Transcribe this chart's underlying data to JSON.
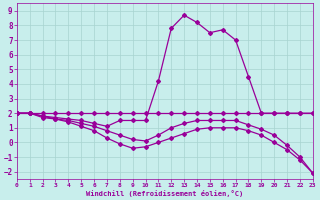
{
  "bg_color": "#c8eeec",
  "grid_color": "#a8d4d0",
  "line_color": "#990099",
  "xlim": [
    0,
    23
  ],
  "ylim": [
    -2.5,
    9.5
  ],
  "yticks": [
    -2,
    -1,
    0,
    1,
    2,
    3,
    4,
    5,
    6,
    7,
    8,
    9
  ],
  "xticks": [
    0,
    1,
    2,
    3,
    4,
    5,
    6,
    7,
    8,
    9,
    10,
    11,
    12,
    13,
    14,
    15,
    16,
    17,
    18,
    19,
    20,
    21,
    22,
    23
  ],
  "xlabel": "Windchill (Refroidissement éolien,°C)",
  "line_flat_y": [
    2.0,
    2.0,
    2.0,
    2.0,
    2.0,
    2.0,
    2.0,
    2.0,
    2.0,
    2.0,
    2.0,
    2.0,
    2.0,
    2.0,
    2.0,
    2.0,
    2.0,
    2.0,
    2.0,
    2.0,
    2.0,
    2.0,
    2.0,
    2.0
  ],
  "line_peak_y": [
    2.0,
    2.0,
    1.8,
    1.7,
    1.6,
    1.5,
    1.3,
    1.1,
    1.5,
    1.5,
    1.5,
    4.2,
    7.8,
    8.7,
    8.2,
    7.5,
    7.7,
    7.0,
    4.5,
    2.0,
    2.0,
    2.0,
    2.0,
    2.0
  ],
  "line_diag_y": [
    2.0,
    2.0,
    1.8,
    1.6,
    1.5,
    1.3,
    1.1,
    0.8,
    0.5,
    0.2,
    0.1,
    0.5,
    1.0,
    1.3,
    1.5,
    1.5,
    1.5,
    1.5,
    1.2,
    0.9,
    0.5,
    -0.2,
    -1.0,
    -2.1
  ],
  "line_steep_y": [
    2.0,
    2.0,
    1.7,
    1.6,
    1.4,
    1.1,
    0.8,
    0.3,
    -0.1,
    -0.4,
    -0.3,
    0.0,
    0.3,
    0.6,
    0.9,
    1.0,
    1.0,
    1.0,
    0.8,
    0.5,
    0.0,
    -0.5,
    -1.2,
    -2.1
  ]
}
